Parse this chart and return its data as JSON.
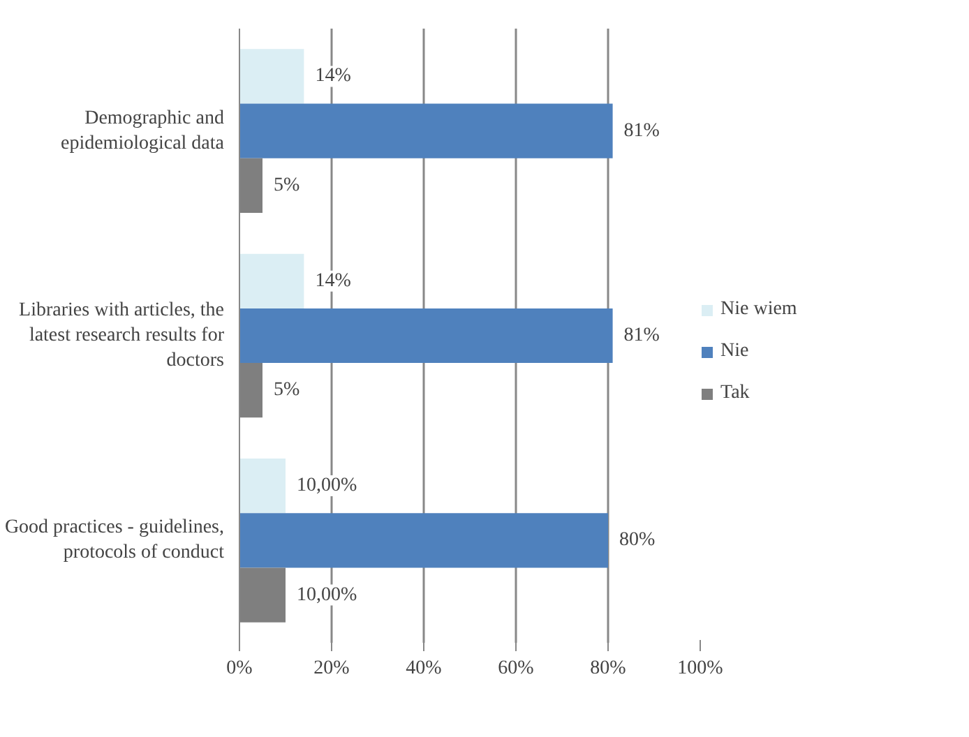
{
  "chart_data": {
    "type": "bar",
    "orientation": "horizontal",
    "categories": [
      "Demographic and\nepidemiological data",
      "Libraries with articles, the\nlatest research results for\ndoctors",
      "Good practices - guidelines,\nprotocols of conduct"
    ],
    "series": [
      {
        "name": "Nie wiem",
        "color": "#dbeef4",
        "values": [
          14,
          14,
          10
        ],
        "value_labels": [
          "14%",
          "14%",
          "10,00%"
        ]
      },
      {
        "name": "Nie",
        "color": "#4f81bd",
        "values": [
          81,
          81,
          80
        ],
        "value_labels": [
          "81%",
          "81%",
          "80%"
        ]
      },
      {
        "name": "Tak",
        "color": "#7f7f7f",
        "values": [
          5,
          5,
          10
        ],
        "value_labels": [
          "5%",
          "5%",
          "10,00%"
        ]
      }
    ],
    "xlim": [
      0,
      100
    ],
    "xticks": [
      {
        "value": 0,
        "label": "0%"
      },
      {
        "value": 20,
        "label": "20%"
      },
      {
        "value": 40,
        "label": "40%"
      },
      {
        "value": 60,
        "label": "60%"
      },
      {
        "value": 80,
        "label": "80%"
      },
      {
        "value": 100,
        "label": "100%"
      }
    ],
    "grid": "x",
    "legend": "right"
  }
}
